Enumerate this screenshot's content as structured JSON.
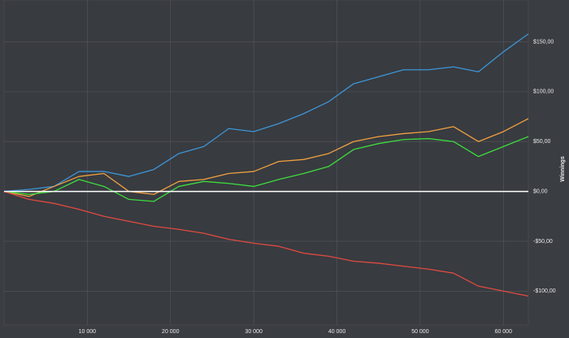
{
  "chart_data": {
    "type": "line",
    "y_axis_label": "Winnings",
    "x": [
      0,
      3000,
      6000,
      9000,
      12000,
      15000,
      18000,
      21000,
      24000,
      27000,
      30000,
      33000,
      36000,
      39000,
      42000,
      45000,
      48000,
      51000,
      54000,
      57000,
      60000,
      63000
    ],
    "series": [
      {
        "color": "#3d95d6",
        "values": [
          0,
          2,
          5,
          20,
          20,
          15,
          22,
          38,
          45,
          63,
          60,
          68,
          78,
          90,
          108,
          115,
          122,
          122,
          125,
          120,
          140,
          158
        ]
      },
      {
        "color": "#f0a040",
        "values": [
          0,
          -5,
          5,
          15,
          18,
          0,
          -3,
          10,
          12,
          18,
          20,
          30,
          32,
          38,
          50,
          55,
          58,
          60,
          65,
          50,
          60,
          73
        ]
      },
      {
        "color": "#3ddc3d",
        "values": [
          0,
          -3,
          0,
          12,
          5,
          -8,
          -10,
          5,
          10,
          8,
          5,
          12,
          18,
          25,
          42,
          48,
          52,
          53,
          50,
          35,
          45,
          55
        ]
      },
      {
        "color": "#e04a40",
        "values": [
          0,
          -8,
          -12,
          -18,
          -25,
          -30,
          -35,
          -38,
          -42,
          -48,
          -52,
          -55,
          -62,
          -65,
          -70,
          -72,
          -75,
          -78,
          -82,
          -95,
          -100,
          -105
        ]
      }
    ],
    "xlim": [
      0,
      63000
    ],
    "xticks": [
      {
        "value": 10000,
        "label": "10 000"
      },
      {
        "value": 20000,
        "label": "20 000"
      },
      {
        "value": 30000,
        "label": "30 000"
      },
      {
        "value": 40000,
        "label": "40 000"
      },
      {
        "value": 50000,
        "label": "50 000"
      },
      {
        "value": 60000,
        "label": "60 000"
      }
    ],
    "ylim": [
      -134,
      192
    ],
    "yticks": [
      {
        "value": -100,
        "label": "-$100,00"
      },
      {
        "value": -50,
        "label": "-$50,00"
      },
      {
        "value": 0,
        "label": "$0,00"
      },
      {
        "value": 50,
        "label": "$50,00"
      },
      {
        "value": 100,
        "label": "$100,00"
      },
      {
        "value": 150,
        "label": "$150,00"
      }
    ],
    "grid": true
  }
}
